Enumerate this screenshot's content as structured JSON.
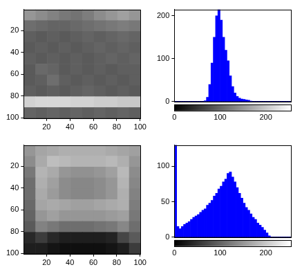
{
  "chart_data": [
    {
      "type": "image",
      "xlim": [
        0.5,
        100.5
      ],
      "ylim": [
        0.5,
        100.5
      ],
      "xticks": [
        20,
        40,
        60,
        80,
        100
      ],
      "yticks": [
        20,
        40,
        60,
        80,
        100
      ],
      "zlim": [
        0,
        255
      ],
      "cells": [
        [
          150,
          140,
          130,
          120,
          115,
          125,
          140,
          150,
          160,
          150
        ],
        [
          110,
          105,
          100,
          100,
          105,
          110,
          115,
          120,
          125,
          120
        ],
        [
          95,
          90,
          95,
          90,
          95,
          100,
          95,
          100,
          105,
          100
        ],
        [
          90,
          95,
          90,
          95,
          90,
          95,
          100,
          95,
          100,
          95
        ],
        [
          95,
          90,
          95,
          90,
          95,
          90,
          95,
          100,
          95,
          100
        ],
        [
          90,
          105,
          100,
          90,
          95,
          90,
          95,
          90,
          95,
          95
        ],
        [
          90,
          95,
          110,
          95,
          90,
          95,
          90,
          95,
          90,
          95
        ],
        [
          95,
          90,
          95,
          90,
          95,
          100,
          95,
          90,
          95,
          90
        ],
        [
          210,
          215,
          215,
          215,
          210,
          210,
          205,
          205,
          200,
          200
        ],
        [
          100,
          95,
          100,
          95,
          100,
          95,
          100,
          95,
          100,
          95
        ]
      ]
    },
    {
      "type": "histogram",
      "bins": [
        0,
        5,
        10,
        15,
        20,
        25,
        30,
        35,
        40,
        45,
        50,
        55,
        60,
        65,
        70,
        75,
        80,
        85,
        90,
        95,
        100,
        105,
        110,
        115,
        120,
        125,
        130,
        135,
        140,
        145,
        150,
        155,
        160,
        165,
        170,
        175,
        180,
        185,
        190,
        195,
        200,
        205,
        210,
        215,
        220,
        225,
        230,
        235,
        240,
        245,
        250,
        255
      ],
      "values": [
        0,
        0,
        0,
        0,
        0,
        0,
        0,
        0,
        0,
        0,
        0,
        0,
        0,
        2,
        10,
        40,
        90,
        150,
        200,
        215,
        190,
        150,
        120,
        95,
        60,
        35,
        20,
        12,
        8,
        6,
        5,
        4,
        3,
        1,
        0,
        0,
        0,
        0,
        0,
        0,
        0,
        0,
        0,
        0,
        0,
        0,
        0,
        0,
        0,
        0,
        0
      ],
      "color": "#0000ff",
      "xlim": [
        0,
        255
      ],
      "xticks": [
        0,
        100,
        200
      ],
      "ylim": [
        0,
        215
      ],
      "yticks": [
        0,
        100,
        200
      ]
    },
    {
      "type": "image",
      "xlim": [
        0.5,
        100.5
      ],
      "ylim": [
        0.5,
        100.5
      ],
      "xticks": [
        20,
        40,
        60,
        80,
        100
      ],
      "yticks": [
        20,
        40,
        60,
        80,
        100
      ],
      "zlim": [
        0,
        255
      ],
      "cells": [
        [
          150,
          165,
          170,
          175,
          175,
          175,
          175,
          170,
          165,
          160
        ],
        [
          140,
          170,
          190,
          185,
          180,
          180,
          180,
          185,
          175,
          150
        ],
        [
          120,
          180,
          170,
          150,
          145,
          145,
          150,
          160,
          185,
          140
        ],
        [
          110,
          175,
          160,
          140,
          135,
          135,
          140,
          150,
          180,
          135
        ],
        [
          110,
          170,
          155,
          140,
          135,
          135,
          140,
          150,
          175,
          130
        ],
        [
          105,
          165,
          170,
          165,
          160,
          160,
          165,
          170,
          175,
          125
        ],
        [
          100,
          150,
          160,
          150,
          150,
          150,
          150,
          155,
          160,
          120
        ],
        [
          90,
          130,
          120,
          110,
          110,
          110,
          115,
          120,
          135,
          110
        ],
        [
          40,
          60,
          40,
          30,
          30,
          30,
          30,
          35,
          70,
          90
        ],
        [
          30,
          30,
          20,
          15,
          15,
          15,
          15,
          20,
          30,
          60
        ]
      ]
    },
    {
      "type": "histogram",
      "bins": [
        0,
        5,
        10,
        15,
        20,
        25,
        30,
        35,
        40,
        45,
        50,
        55,
        60,
        65,
        70,
        75,
        80,
        85,
        90,
        95,
        100,
        105,
        110,
        115,
        120,
        125,
        130,
        135,
        140,
        145,
        150,
        155,
        160,
        165,
        170,
        175,
        180,
        185,
        190,
        195,
        200,
        205,
        210,
        215,
        220,
        225,
        230,
        235,
        240,
        245,
        250,
        255
      ],
      "values": [
        130,
        15,
        12,
        15,
        18,
        20,
        22,
        25,
        28,
        30,
        32,
        35,
        38,
        40,
        45,
        48,
        52,
        58,
        62,
        68,
        72,
        78,
        82,
        90,
        92,
        85,
        78,
        70,
        62,
        55,
        48,
        42,
        38,
        33,
        28,
        25,
        20,
        17,
        14,
        10,
        6,
        2,
        0,
        0,
        0,
        0,
        0,
        0,
        0,
        0,
        0
      ],
      "color": "#0000ff",
      "xlim": [
        0,
        255
      ],
      "xticks": [
        0,
        100,
        200
      ],
      "ylim": [
        0,
        130
      ],
      "yticks": [
        0,
        50,
        100
      ]
    }
  ]
}
